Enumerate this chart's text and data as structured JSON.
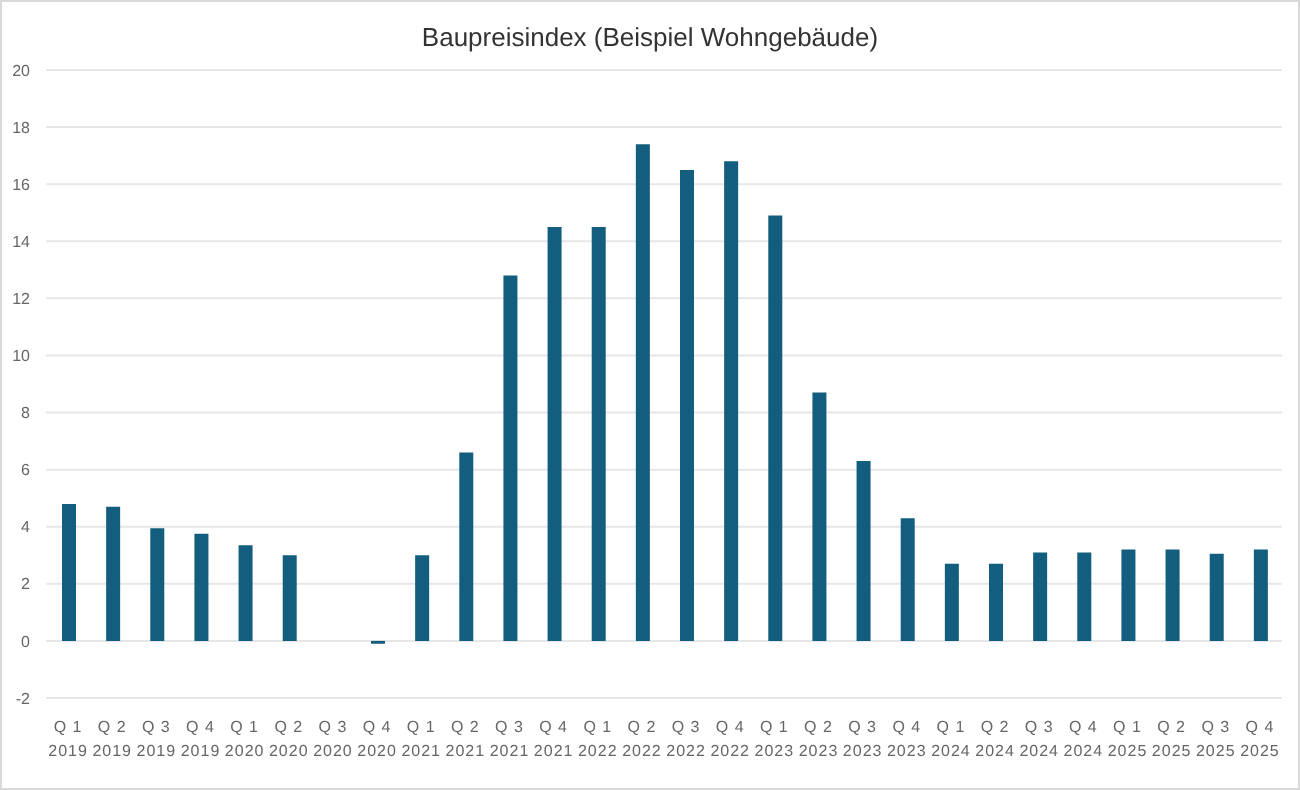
{
  "chart_data": {
    "type": "bar",
    "title": "Baupreisindex (Beispiel Wohngebäude)",
    "categories": [
      "Q 1 2019",
      "Q 2 2019",
      "Q 3 2019",
      "Q 4 2019",
      "Q 1 2020",
      "Q 2 2020",
      "Q 3 2020",
      "Q 4 2020",
      "Q 1 2021",
      "Q 2 2021",
      "Q 3 2021",
      "Q 4 2021",
      "Q 1 2022",
      "Q 2 2022",
      "Q 3 2022",
      "Q 4 2022",
      "Q 1 2023",
      "Q 2 2023",
      "Q 3 2023",
      "Q 4 2023",
      "Q 1 2024",
      "Q 2 2024",
      "Q 3 2024",
      "Q 4 2024",
      "Q 1 2025",
      "Q 2 2025",
      "Q 3 2025",
      "Q 4 2025"
    ],
    "values": [
      4.8,
      4.7,
      3.95,
      3.75,
      3.35,
      3.0,
      0,
      -0.1,
      3.0,
      6.6,
      12.8,
      14.5,
      14.5,
      17.4,
      16.5,
      16.8,
      14.9,
      8.7,
      6.3,
      4.3,
      2.7,
      2.7,
      3.1,
      3.1,
      3.2,
      3.2,
      3.05,
      3.2
    ],
    "color": "#135e7e",
    "ylim": [
      -2,
      20
    ],
    "yticks": [
      -2,
      0,
      2,
      4,
      6,
      8,
      10,
      12,
      14,
      16,
      18,
      20
    ],
    "grid": "y",
    "legend": false
  }
}
